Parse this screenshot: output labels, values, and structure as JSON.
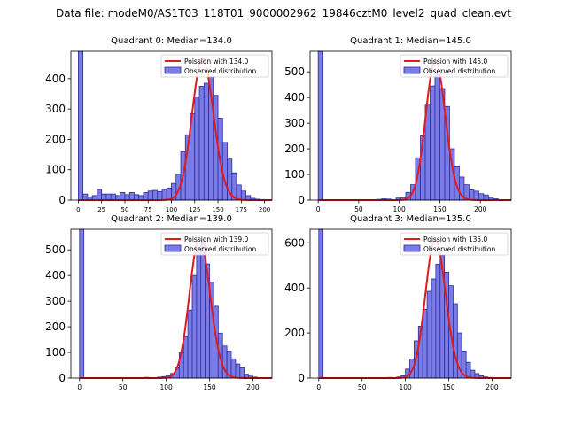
{
  "suptitle": "Data file: modeM0/AS1T03_118T01_9000002962_19846cztM0_level2_quad_clean.evt",
  "colors": {
    "bar": "#7b7be6",
    "bar_edge": "#2b2b9c",
    "curve": "#e31a1c",
    "axis": "#000000"
  },
  "chart_data": [
    {
      "type": "bar",
      "title": "Quadrant 0: Median=134.0",
      "legend": [
        "Poission with 134.0",
        "Observed distribution"
      ],
      "legend_position": "top-right",
      "bin_width": 5,
      "xlim": [
        -8,
        208
      ],
      "ylim": [
        0,
        490
      ],
      "xticks": [
        0,
        25,
        50,
        75,
        100,
        125,
        150,
        175,
        200
      ],
      "yticks": [
        0,
        100,
        200,
        300,
        400
      ],
      "bins": [
        0,
        5,
        10,
        15,
        20,
        25,
        30,
        35,
        40,
        45,
        50,
        55,
        60,
        65,
        70,
        75,
        80,
        85,
        90,
        95,
        100,
        105,
        110,
        115,
        120,
        125,
        130,
        135,
        140,
        145,
        150,
        155,
        160,
        165,
        170,
        175,
        180,
        185,
        190,
        195
      ],
      "values": [
        490,
        20,
        10,
        15,
        35,
        20,
        20,
        20,
        15,
        25,
        18,
        25,
        18,
        15,
        25,
        30,
        32,
        28,
        35,
        40,
        55,
        85,
        160,
        215,
        285,
        340,
        375,
        385,
        405,
        345,
        270,
        190,
        135,
        90,
        50,
        30,
        15,
        6,
        3,
        2
      ],
      "poisson_mean": 134.0,
      "poisson_peak": 465
    },
    {
      "type": "bar",
      "title": "Quadrant 1: Median=145.0",
      "legend": [
        "Poission with 145.0",
        "Observed distribution"
      ],
      "legend_position": "top-right",
      "bin_width": 6,
      "xlim": [
        -10,
        238
      ],
      "ylim": [
        0,
        580
      ],
      "xticks": [
        0,
        50,
        100,
        150,
        200
      ],
      "yticks": [
        0,
        100,
        200,
        300,
        400,
        500
      ],
      "bins": [
        0,
        72,
        78,
        84,
        96,
        102,
        108,
        114,
        120,
        126,
        132,
        138,
        144,
        150,
        156,
        162,
        168,
        174,
        180,
        186,
        192,
        198,
        204,
        210,
        216,
        222
      ],
      "values": [
        580,
        3,
        5,
        4,
        8,
        10,
        30,
        60,
        165,
        250,
        370,
        445,
        500,
        435,
        365,
        200,
        130,
        90,
        60,
        40,
        35,
        25,
        20,
        8,
        5,
        2
      ],
      "poisson_mean": 145.0,
      "poisson_peak": 545
    },
    {
      "type": "bar",
      "title": "Quadrant 2: Median=139.0",
      "legend": [
        "Poission with 139.0",
        "Observed distribution"
      ],
      "legend_position": "top-right",
      "bin_width": 5,
      "xlim": [
        -10,
        222
      ],
      "ylim": [
        0,
        580
      ],
      "xticks": [
        0,
        50,
        100,
        150,
        200
      ],
      "yticks": [
        0,
        100,
        200,
        300,
        400,
        500
      ],
      "bins": [
        0,
        75,
        90,
        95,
        100,
        105,
        110,
        115,
        120,
        125,
        130,
        135,
        140,
        145,
        150,
        155,
        160,
        165,
        170,
        175,
        180,
        185,
        190,
        195,
        200,
        205
      ],
      "values": [
        580,
        3,
        4,
        6,
        10,
        18,
        40,
        100,
        160,
        265,
        400,
        505,
        540,
        445,
        375,
        280,
        175,
        125,
        105,
        75,
        55,
        40,
        15,
        8,
        4,
        2
      ],
      "poisson_mean": 139.0,
      "poisson_peak": 545
    },
    {
      "type": "bar",
      "title": "Quadrant 3: Median=135.0",
      "legend": [
        "Poission with 135.0",
        "Observed distribution"
      ],
      "legend_position": "top-right",
      "bin_width": 5,
      "xlim": [
        -10,
        222
      ],
      "ylim": [
        0,
        660
      ],
      "xticks": [
        0,
        50,
        100,
        150,
        200
      ],
      "yticks": [
        0,
        200,
        400,
        600
      ],
      "bins": [
        0,
        80,
        90,
        95,
        100,
        105,
        110,
        115,
        120,
        125,
        130,
        135,
        140,
        145,
        150,
        155,
        160,
        165,
        170,
        175,
        180,
        185,
        190,
        195,
        200
      ],
      "values": [
        660,
        3,
        5,
        10,
        40,
        85,
        165,
        230,
        305,
        385,
        440,
        505,
        545,
        470,
        410,
        330,
        200,
        120,
        70,
        35,
        20,
        10,
        5,
        3,
        2
      ],
      "poisson_mean": 135.0,
      "poisson_peak": 615
    }
  ]
}
